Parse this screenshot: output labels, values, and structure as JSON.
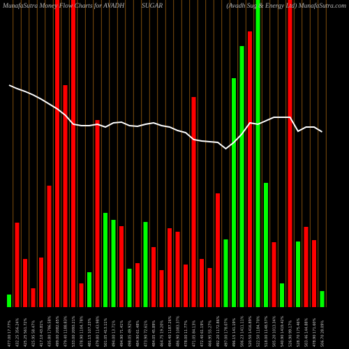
{
  "chart_data": {
    "type": "bar",
    "title": "MunafaSutra  Money Flow  Charts for AVADH",
    "title_middle": "SUGAR",
    "title_right": "(Avadh Sug & Energy Ltd) MunafaSutra.com",
    "categories": [
      "477.00 17.77%",
      "432.25 356.24%",
      "425.25 561.72%",
      "425.95 58.47%",
      "417.10 43.81%",
      "435.80 1786.58%",
      "499.00 2082.65%",
      "479.40 1188.83%",
      "533.00 2093.21%",
      "478.90 1104.78%",
      "481.15 107.23%",
      "479.80 1143.98%",
      "501.05 413.11%",
      "494.00 13.71%",
      "494.90 71.41%",
      "498.05 49.92%",
      "484.90 61.48%",
      "473.90 72.61%",
      "484.05 45.89%",
      "464.75 19.20%",
      "494.40 1187.26%",
      "486.90 1083.37%",
      "478.00 11.77%",
      "471.05 84.13%",
      "472.40 61.19%",
      "466.95 55.27%",
      "492.20 1172.86%",
      "497.00 178.07%",
      "496.15 141.19%",
      "506.23 1411.11%",
      "520.50 1416.89%",
      "522.50 1184.70%",
      "518.00 1148.57%",
      "505.20 1013.34%",
      "540.90 1419.42%",
      "526.90 99.17%",
      "528.70 175.46%",
      "503.46 144.88%",
      "478.90 171.60%",
      "506.70 28.09%"
    ],
    "values": [
      18,
      121,
      69,
      27,
      71,
      174,
      440,
      318,
      440,
      34,
      50,
      268,
      135,
      125,
      116,
      55,
      63,
      122,
      86,
      53,
      113,
      108,
      61,
      301,
      69,
      56,
      163,
      97,
      328,
      374,
      395,
      440,
      178,
      93,
      34,
      440,
      94,
      115,
      96,
      23
    ],
    "colors": [
      "#00ff00",
      "#ff0000",
      "#ff0000",
      "#ff0000",
      "#ff0000",
      "#ff0000",
      "#ff0000",
      "#ff0000",
      "#ff0000",
      "#ff0000",
      "#00ff00",
      "#ff0000",
      "#00ff00",
      "#00ff00",
      "#ff0000",
      "#00ff00",
      "#ff0000",
      "#00ff00",
      "#ff0000",
      "#ff0000",
      "#ff0000",
      "#ff0000",
      "#ff0000",
      "#ff0000",
      "#ff0000",
      "#ff0000",
      "#ff0000",
      "#00ff00",
      "#00ff00",
      "#00ff00",
      "#ff0000",
      "#00ff00",
      "#00ff00",
      "#ff0000",
      "#00ff00",
      "#ff0000",
      "#00ff00",
      "#ff0000",
      "#ff0000",
      "#00ff00"
    ],
    "line": {
      "color": "#ffffff",
      "values": [
        318,
        313,
        309,
        304,
        298,
        291,
        284,
        275,
        262,
        260,
        260,
        262,
        258,
        264,
        265,
        260,
        259,
        262,
        264,
        260,
        258,
        253,
        250,
        240,
        238,
        237,
        236,
        227,
        236,
        248,
        264,
        262,
        267,
        272,
        272,
        272,
        252,
        258,
        258,
        251
      ]
    },
    "ylim": [
      0,
      440
    ]
  }
}
